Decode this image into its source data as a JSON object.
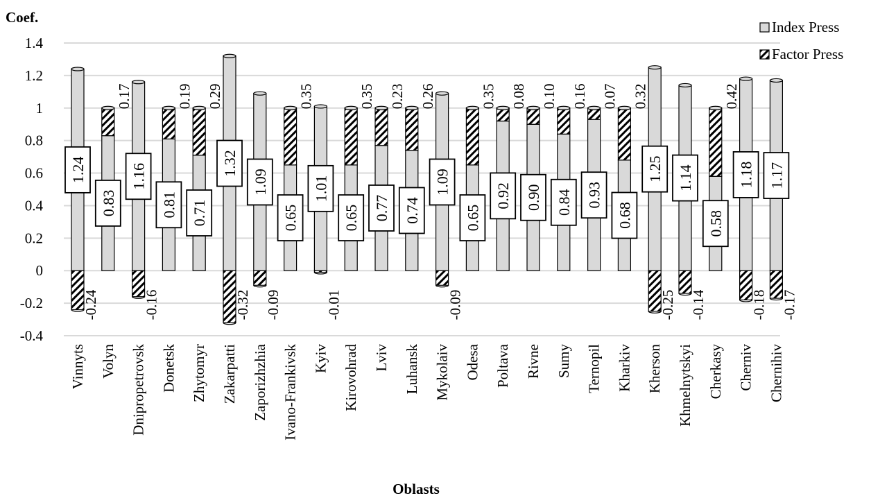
{
  "chart_data": {
    "type": "bar",
    "ylabel": "Coef.",
    "xlabel": "Oblasts",
    "ylim": [
      -0.4,
      1.4
    ],
    "yticks": [
      "-0.4",
      "-0.2",
      "0",
      "0.2",
      "0.4",
      "0.6",
      "0.8",
      "1",
      "1.2",
      "1.4"
    ],
    "grid": true,
    "legend_position": "top-right",
    "categories": [
      "Vinnyts",
      "Volyn",
      "Dnipropetrovsk",
      "Donetsk",
      "Zhytomyr",
      "Zakarpatti",
      "Zaporizhzhia",
      "Ivano-Frankivsk",
      "Kyiv",
      "Kirovohrad",
      "Lviv",
      "Luhansk",
      "Mykolaiv",
      "Odesa",
      "Poltava",
      "Rivne",
      "Sumy",
      "Ternopil",
      "Kharkiv",
      "Kherson",
      "Khmelnytskyi",
      "Cherkasy",
      "Cherniv",
      "Chernihiv"
    ],
    "series": [
      {
        "name": "Index Press",
        "pattern": "light gray fill",
        "values": [
          1.24,
          0.83,
          1.16,
          0.81,
          0.71,
          1.32,
          1.09,
          0.65,
          1.01,
          0.65,
          0.77,
          0.74,
          1.09,
          0.65,
          0.92,
          0.9,
          0.84,
          0.93,
          0.68,
          1.25,
          1.14,
          0.58,
          1.18,
          1.17
        ],
        "labels": [
          "1.24",
          "0.83",
          "1.16",
          "0.81",
          "0.71",
          "1.32",
          "1.09",
          "0.65",
          "1.01",
          "0.65",
          "0.77",
          "0.74",
          "1.09",
          "0.65",
          "0.92",
          "0.90",
          "0.84",
          "0.93",
          "0.68",
          "1.25",
          "1.14",
          "0.58",
          "1.18",
          "1.17"
        ]
      },
      {
        "name": "Factor Press",
        "pattern": "diagonal hatch",
        "values": [
          -0.24,
          0.17,
          -0.16,
          0.19,
          0.29,
          -0.32,
          -0.09,
          0.35,
          -0.01,
          0.35,
          0.23,
          0.26,
          -0.09,
          0.35,
          0.08,
          0.1,
          0.16,
          0.07,
          0.32,
          -0.25,
          -0.14,
          0.42,
          -0.18,
          -0.17
        ],
        "labels": [
          "-0.24",
          "0.17",
          "-0.16",
          "0.19",
          "0.29",
          "-0.32",
          "-0.09",
          "0.35",
          "-0.01",
          "0.35",
          "0.23",
          "0.26",
          "-0.09",
          "0.35",
          "0.08",
          "0.10",
          "0.16",
          "0.07",
          "0.32",
          "-0.25",
          "-0.14",
          "0.42",
          "-0.18",
          "-0.17"
        ]
      }
    ]
  },
  "colors": {
    "index_fill": "#d9d9d9",
    "outline": "#000000",
    "grid": "#d9d9d9",
    "hatch_fill": "#ffffff"
  }
}
